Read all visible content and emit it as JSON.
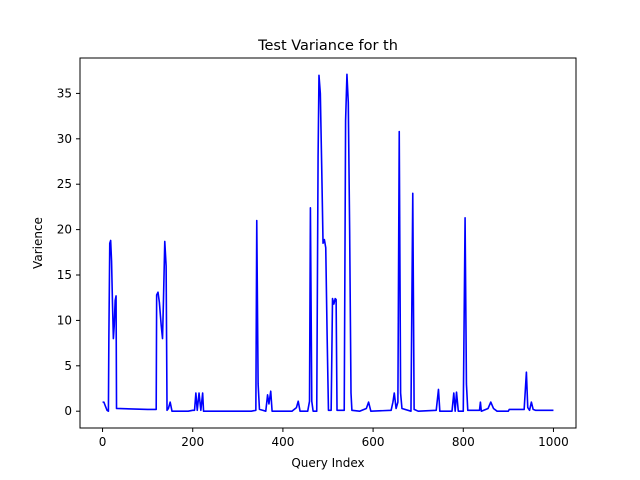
{
  "chart_data": {
    "type": "line",
    "title": "Test Variance for th",
    "xlabel": "Query Index",
    "ylabel": "Varience",
    "xlim": [
      -50,
      1050
    ],
    "ylim": [
      -1.85,
      38.9
    ],
    "xticks": [
      0,
      200,
      400,
      600,
      800,
      1000
    ],
    "yticks": [
      0,
      5,
      10,
      15,
      20,
      25,
      30,
      35
    ],
    "grid": false,
    "legend": "none",
    "series": [
      {
        "color": "#0000ff",
        "points": [
          [
            0,
            1.0
          ],
          [
            3,
            1.0
          ],
          [
            6,
            0.6
          ],
          [
            10,
            0.1
          ],
          [
            13,
            0.0
          ],
          [
            14,
            8.0
          ],
          [
            16,
            18.5
          ],
          [
            18,
            18.8
          ],
          [
            20,
            16.5
          ],
          [
            22,
            12.0
          ],
          [
            24,
            8.0
          ],
          [
            26,
            9.5
          ],
          [
            28,
            12.2
          ],
          [
            30,
            12.7
          ],
          [
            31,
            0.3
          ],
          [
            100,
            0.2
          ],
          [
            119,
            0.2
          ],
          [
            120,
            12.8
          ],
          [
            123,
            13.1
          ],
          [
            126,
            12.0
          ],
          [
            130,
            9.5
          ],
          [
            133,
            8.0
          ],
          [
            135,
            12.0
          ],
          [
            138,
            18.7
          ],
          [
            141,
            16.0
          ],
          [
            143,
            0.1
          ],
          [
            146,
            0.3
          ],
          [
            150,
            1.0
          ],
          [
            154,
            0.0
          ],
          [
            190,
            0.0
          ],
          [
            200,
            0.1
          ],
          [
            204,
            0.1
          ],
          [
            207,
            2.0
          ],
          [
            210,
            0.1
          ],
          [
            214,
            2.0
          ],
          [
            218,
            0.1
          ],
          [
            222,
            2.0
          ],
          [
            224,
            0.0
          ],
          [
            270,
            0.0
          ],
          [
            300,
            0.0
          ],
          [
            330,
            0.0
          ],
          [
            340,
            0.1
          ],
          [
            342,
            21.0
          ],
          [
            345,
            3.0
          ],
          [
            348,
            0.2
          ],
          [
            355,
            0.1
          ],
          [
            362,
            0.0
          ],
          [
            366,
            1.8
          ],
          [
            369,
            0.8
          ],
          [
            373,
            2.2
          ],
          [
            376,
            0.0
          ],
          [
            420,
            0.0
          ],
          [
            430,
            0.4
          ],
          [
            434,
            1.1
          ],
          [
            438,
            0.0
          ],
          [
            455,
            0.0
          ],
          [
            459,
            1.1
          ],
          [
            461,
            22.4
          ],
          [
            464,
            1.1
          ],
          [
            467,
            0.0
          ],
          [
            475,
            0.0
          ],
          [
            478,
            28.0
          ],
          [
            480,
            37.0
          ],
          [
            483,
            35.0
          ],
          [
            486,
            27.0
          ],
          [
            489,
            18.5
          ],
          [
            492,
            18.9
          ],
          [
            495,
            18.0
          ],
          [
            498,
            8.5
          ],
          [
            501,
            0.1
          ],
          [
            507,
            0.1
          ],
          [
            510,
            12.4
          ],
          [
            513,
            11.8
          ],
          [
            516,
            12.4
          ],
          [
            518,
            12.3
          ],
          [
            520,
            0.1
          ],
          [
            536,
            0.1
          ],
          [
            539,
            32.0
          ],
          [
            542,
            37.1
          ],
          [
            545,
            34.0
          ],
          [
            548,
            20.0
          ],
          [
            551,
            2.0
          ],
          [
            553,
            0.1
          ],
          [
            570,
            0.0
          ],
          [
            585,
            0.3
          ],
          [
            590,
            1.0
          ],
          [
            595,
            0.0
          ],
          [
            640,
            0.1
          ],
          [
            644,
            1.0
          ],
          [
            647,
            2.0
          ],
          [
            651,
            0.3
          ],
          [
            655,
            1.0
          ],
          [
            658,
            30.8
          ],
          [
            661,
            2.0
          ],
          [
            664,
            0.3
          ],
          [
            684,
            0.0
          ],
          [
            688,
            24.0
          ],
          [
            691,
            0.2
          ],
          [
            700,
            0.0
          ],
          [
            740,
            0.1
          ],
          [
            745,
            2.4
          ],
          [
            748,
            0.0
          ],
          [
            775,
            0.0
          ],
          [
            779,
            2.0
          ],
          [
            782,
            0.0
          ],
          [
            785,
            2.1
          ],
          [
            789,
            0.0
          ],
          [
            800,
            0.0
          ],
          [
            804,
            21.3
          ],
          [
            807,
            3.0
          ],
          [
            810,
            0.1
          ],
          [
            836,
            0.1
          ],
          [
            838,
            1.0
          ],
          [
            840,
            0.0
          ],
          [
            855,
            0.3
          ],
          [
            861,
            1.0
          ],
          [
            867,
            0.3
          ],
          [
            875,
            0.0
          ],
          [
            900,
            0.0
          ],
          [
            902,
            0.2
          ],
          [
            935,
            0.2
          ],
          [
            940,
            4.3
          ],
          [
            943,
            0.4
          ],
          [
            947,
            0.1
          ],
          [
            951,
            1.0
          ],
          [
            955,
            0.2
          ],
          [
            960,
            0.1
          ],
          [
            1000,
            0.1
          ]
        ]
      }
    ]
  }
}
